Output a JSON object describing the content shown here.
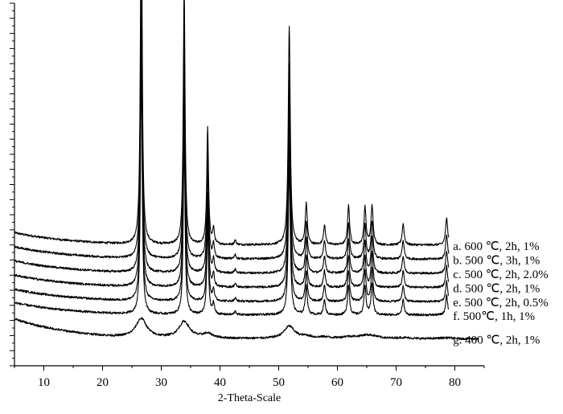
{
  "chart_data": {
    "type": "line",
    "title": "",
    "xlabel": "2-Theta-Scale",
    "ylabel": "",
    "xlim": [
      5,
      85
    ],
    "ylim": [
      0,
      1
    ],
    "x_ticks": [
      10,
      20,
      30,
      40,
      50,
      60,
      70,
      80
    ],
    "y_tick_labels_shown": false,
    "grid": false,
    "peak_positions_2theta": [
      26.6,
      33.9,
      37.9,
      38.9,
      42.6,
      51.8,
      54.7,
      57.8,
      61.9,
      64.7,
      65.9,
      71.2,
      78.6
    ],
    "series": [
      {
        "name": "a. 600 ℃, 2h, 1%",
        "baseline_y": 0.333,
        "peak_heights": [
          1.0,
          0.71,
          0.321,
          0.041,
          0.012,
          0.6,
          0.113,
          0.053,
          0.108,
          0.104,
          0.109,
          0.058,
          0.077
        ]
      },
      {
        "name": "b. 500 ℃, 3h, 1%",
        "baseline_y": 0.294,
        "peak_heights": [
          0.88,
          0.63,
          0.3,
          0.04,
          0.011,
          0.54,
          0.102,
          0.05,
          0.1,
          0.096,
          0.104,
          0.051,
          0.068
        ]
      },
      {
        "name": "c. 500 ℃, 2h, 2.0%",
        "baseline_y": 0.255,
        "peak_heights": [
          0.8,
          0.58,
          0.28,
          0.038,
          0.01,
          0.5,
          0.095,
          0.048,
          0.092,
          0.09,
          0.098,
          0.047,
          0.062
        ]
      },
      {
        "name": "d. 500 ℃, 2h, 1%",
        "baseline_y": 0.216,
        "peak_heights": [
          0.76,
          0.55,
          0.26,
          0.035,
          0.01,
          0.47,
          0.088,
          0.045,
          0.088,
          0.086,
          0.094,
          0.045,
          0.059
        ]
      },
      {
        "name": "e. 500 ℃, 2h, 0.5%",
        "baseline_y": 0.177,
        "peak_heights": [
          0.72,
          0.52,
          0.25,
          0.033,
          0.009,
          0.44,
          0.084,
          0.043,
          0.085,
          0.083,
          0.09,
          0.043,
          0.057
        ]
      },
      {
        "name": "f. 500℃, 1h, 1%",
        "baseline_y": 0.14,
        "peak_heights": [
          0.68,
          0.49,
          0.24,
          0.031,
          0.009,
          0.41,
          0.08,
          0.041,
          0.082,
          0.08,
          0.087,
          0.042,
          0.055
        ]
      },
      {
        "name": "g. 400 ℃, 2h, 1%",
        "baseline_y": 0.074,
        "broad": true,
        "peak_heights": [
          0.052,
          0.045,
          0.012,
          0.0,
          0.0,
          0.034,
          0.006,
          0.004,
          0.005,
          0.006,
          0.006,
          0.003,
          0.003
        ]
      }
    ]
  }
}
